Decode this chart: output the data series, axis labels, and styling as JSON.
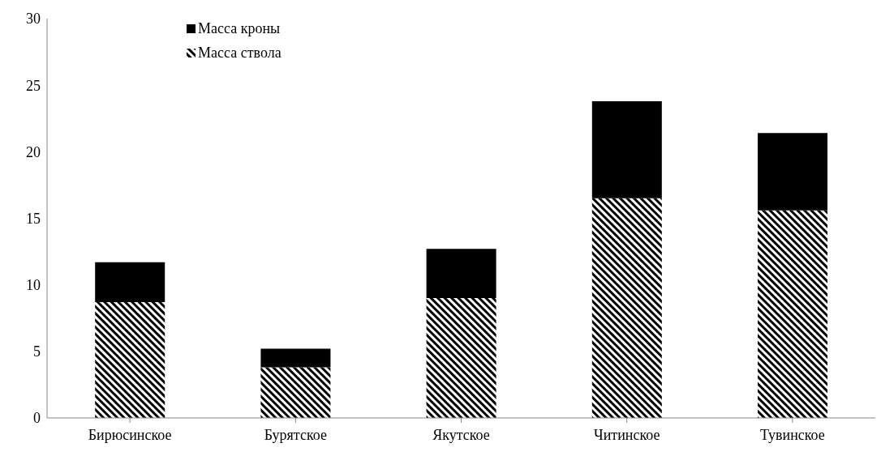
{
  "chart_data": {
    "type": "bar",
    "stacked": true,
    "categories": [
      "Бирюсинское",
      "Бурятское",
      "Якутское",
      "Читинское",
      "Тувинское"
    ],
    "series": [
      {
        "name": "Масса ствола",
        "color": "#000000",
        "values": [
          8.7,
          3.8,
          9.0,
          16.5,
          15.6
        ]
      },
      {
        "name": "Масса кроны",
        "color": "#000000",
        "values": [
          3.0,
          1.4,
          3.7,
          7.3,
          5.8
        ]
      }
    ],
    "ylim": [
      0,
      30
    ],
    "yticks": [
      0,
      5,
      10,
      15,
      20,
      25,
      30
    ],
    "grid": false,
    "legend": "top left"
  }
}
